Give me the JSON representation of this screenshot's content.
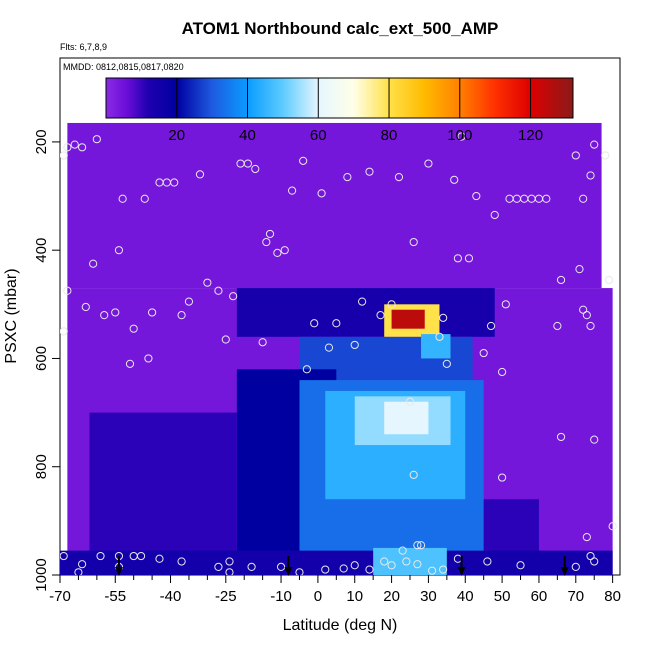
{
  "chart_data": {
    "type": "heatmap",
    "title": "ATOM1 Northbound calc_ext_500_AMP",
    "subtitle": "Flts: 6,7,8,9",
    "annotation": "MMDD: 0812,0815,0817,0820",
    "xlabel": "Latitude (deg N)",
    "ylabel": "PSXC (mbar)",
    "xlim": [
      -70,
      82
    ],
    "ylim": [
      1000,
      45
    ],
    "x_ticks": [
      -70,
      -55,
      -40,
      -25,
      -10,
      0,
      10,
      20,
      30,
      40,
      50,
      60,
      70,
      80
    ],
    "x_tick_labels": [
      "-70",
      "-55",
      "-40",
      "-25",
      "-10",
      "0",
      "10",
      "20",
      "30",
      "40",
      "50",
      "60",
      "70",
      "80"
    ],
    "x_minor_ticks": [
      -65,
      -60,
      -50,
      -45,
      -35,
      -30,
      -20,
      -15,
      -5,
      5,
      15,
      25,
      35,
      45,
      55,
      65,
      75
    ],
    "y_ticks": [
      200,
      400,
      600,
      800,
      1000
    ],
    "y_tick_labels": [
      "200",
      "400",
      "600",
      "800",
      "1000"
    ],
    "colorbar": {
      "range": [
        0,
        132
      ],
      "ticks": [
        20,
        40,
        60,
        80,
        100,
        120
      ],
      "tick_labels": [
        "20",
        "40",
        "60",
        "80",
        "100",
        "120"
      ],
      "stops": [
        {
          "v": 0,
          "c": "#8a2be2"
        },
        {
          "v": 6,
          "c": "#6a0dd8"
        },
        {
          "v": 12,
          "c": "#1e00b0"
        },
        {
          "v": 20,
          "c": "#0000a0"
        },
        {
          "v": 30,
          "c": "#1e5ae0"
        },
        {
          "v": 40,
          "c": "#0a9cff"
        },
        {
          "v": 50,
          "c": "#5ecbff"
        },
        {
          "v": 60,
          "c": "#e6f6ff"
        },
        {
          "v": 70,
          "c": "#ffffe8"
        },
        {
          "v": 80,
          "c": "#ffe14a"
        },
        {
          "v": 90,
          "c": "#ffba00"
        },
        {
          "v": 100,
          "c": "#ff8000"
        },
        {
          "v": 110,
          "c": "#ff3000"
        },
        {
          "v": 120,
          "c": "#dd0000"
        },
        {
          "v": 132,
          "c": "#8b1a1a"
        }
      ]
    },
    "field": [
      {
        "lat": [
          -68,
          77
        ],
        "p": [
          165,
          470
        ],
        "value": 4
      },
      {
        "lat": [
          -68,
          80
        ],
        "p": [
          470,
          1000
        ],
        "value": 4
      },
      {
        "lat": [
          -22,
          48
        ],
        "p": [
          470,
          560
        ],
        "value": 14
      },
      {
        "lat": [
          -5,
          42
        ],
        "p": [
          560,
          640
        ],
        "value": 28
      },
      {
        "lat": [
          -22,
          5
        ],
        "p": [
          620,
          1000
        ],
        "value": 20
      },
      {
        "lat": [
          -5,
          45
        ],
        "p": [
          640,
          1000
        ],
        "value": 33
      },
      {
        "lat": [
          2,
          40
        ],
        "p": [
          660,
          860
        ],
        "value": 44
      },
      {
        "lat": [
          10,
          36
        ],
        "p": [
          670,
          760
        ],
        "value": 54
      },
      {
        "lat": [
          18,
          30
        ],
        "p": [
          680,
          740
        ],
        "value": 60
      },
      {
        "lat": [
          -62,
          -22
        ],
        "p": [
          700,
          960
        ],
        "value": 11
      },
      {
        "lat": [
          45,
          60
        ],
        "p": [
          860,
          960
        ],
        "value": 11
      },
      {
        "lat": [
          -70,
          80
        ],
        "p": [
          955,
          1000
        ],
        "value": 15
      },
      {
        "lat": [
          15,
          35
        ],
        "p": [
          950,
          1000
        ],
        "value": 48
      },
      {
        "lat": [
          18,
          33
        ],
        "p": [
          500,
          560
        ],
        "value": 80
      },
      {
        "lat": [
          20,
          29
        ],
        "p": [
          510,
          545
        ],
        "value": 125
      },
      {
        "lat": [
          28,
          36
        ],
        "p": [
          555,
          600
        ],
        "value": 45
      }
    ],
    "samples": [
      [
        -69,
        225
      ],
      [
        -68,
        210
      ],
      [
        -66,
        205
      ],
      [
        -64,
        210
      ],
      [
        -60,
        195
      ],
      [
        -68,
        475
      ],
      [
        -69,
        550
      ],
      [
        -63,
        505
      ],
      [
        -61,
        425
      ],
      [
        -58,
        520
      ],
      [
        -55,
        515
      ],
      [
        -54,
        400
      ],
      [
        -53,
        305
      ],
      [
        -51,
        610
      ],
      [
        -50,
        545
      ],
      [
        -47,
        305
      ],
      [
        -46,
        600
      ],
      [
        -45,
        515
      ],
      [
        -43,
        275
      ],
      [
        -41,
        275
      ],
      [
        -39,
        275
      ],
      [
        -37,
        520
      ],
      [
        -35,
        495
      ],
      [
        -32,
        260
      ],
      [
        -30,
        460
      ],
      [
        -27,
        475
      ],
      [
        -25,
        565
      ],
      [
        -23,
        485
      ],
      [
        -21,
        240
      ],
      [
        -19,
        240
      ],
      [
        -17,
        250
      ],
      [
        -15,
        570
      ],
      [
        -14,
        385
      ],
      [
        -13,
        370
      ],
      [
        -11,
        405
      ],
      [
        -9,
        400
      ],
      [
        -7,
        290
      ],
      [
        -4,
        235
      ],
      [
        -3,
        620
      ],
      [
        -1,
        535
      ],
      [
        1,
        295
      ],
      [
        3,
        580
      ],
      [
        5,
        535
      ],
      [
        8,
        265
      ],
      [
        10,
        575
      ],
      [
        12,
        495
      ],
      [
        14,
        255
      ],
      [
        17,
        520
      ],
      [
        20,
        500
      ],
      [
        22,
        265
      ],
      [
        26,
        385
      ],
      [
        30,
        240
      ],
      [
        33,
        560
      ],
      [
        34,
        525
      ],
      [
        35,
        610
      ],
      [
        37,
        270
      ],
      [
        39,
        190
      ],
      [
        38,
        415
      ],
      [
        41,
        415
      ],
      [
        43,
        300
      ],
      [
        45,
        590
      ],
      [
        47,
        540
      ],
      [
        48,
        335
      ],
      [
        50,
        625
      ],
      [
        51,
        500
      ],
      [
        52,
        305
      ],
      [
        54,
        305
      ],
      [
        56,
        305
      ],
      [
        58,
        305
      ],
      [
        60,
        305
      ],
      [
        62,
        305
      ],
      [
        65,
        540
      ],
      [
        66,
        455
      ],
      [
        66,
        745
      ],
      [
        70,
        225
      ],
      [
        71,
        435
      ],
      [
        72,
        510
      ],
      [
        73,
        520
      ],
      [
        74,
        540
      ],
      [
        75,
        205
      ],
      [
        72,
        305
      ],
      [
        74,
        262
      ],
      [
        78,
        225
      ],
      [
        79,
        455
      ],
      [
        80,
        910
      ],
      [
        75,
        750
      ],
      [
        73,
        930
      ],
      [
        -69,
        965
      ],
      [
        -65,
        995
      ],
      [
        -59,
        965
      ],
      [
        -54,
        985
      ],
      [
        -50,
        965
      ],
      [
        -48,
        965
      ],
      [
        -43,
        970
      ],
      [
        -37,
        975
      ],
      [
        -27,
        985
      ],
      [
        -24,
        975
      ],
      [
        -24,
        995
      ],
      [
        -18,
        985
      ],
      [
        -10,
        985
      ],
      [
        -5,
        995
      ],
      [
        2,
        990
      ],
      [
        7,
        988
      ],
      [
        10,
        982
      ],
      [
        14,
        990
      ],
      [
        18,
        975
      ],
      [
        20,
        982
      ],
      [
        24,
        975
      ],
      [
        27,
        980
      ],
      [
        31,
        992
      ],
      [
        34,
        990
      ],
      [
        38,
        970
      ],
      [
        46,
        975
      ],
      [
        55,
        982
      ],
      [
        70,
        985
      ],
      [
        74,
        965
      ],
      [
        75,
        975
      ],
      [
        -54,
        965
      ],
      [
        -64,
        980
      ],
      [
        26,
        815
      ],
      [
        25,
        680
      ],
      [
        27,
        945
      ],
      [
        23,
        955
      ],
      [
        50,
        820
      ],
      [
        28,
        945
      ]
    ],
    "arrows": [
      -54,
      -8,
      39,
      67
    ]
  }
}
